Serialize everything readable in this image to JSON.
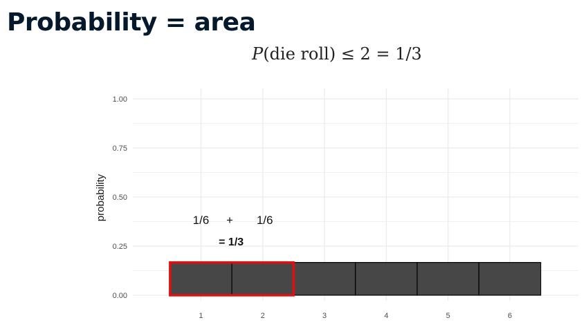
{
  "slide": {
    "title": "Probability = area",
    "formula": {
      "P": "P",
      "argument": "(die roll)",
      "rest": " ≤ 2 = 1/3"
    }
  },
  "colors": {
    "bar_fill": "#474747",
    "bar_edge": "#000000",
    "highlight": "#e01010",
    "grid": "#ebebeb"
  },
  "chart_data": {
    "type": "bar",
    "categories": [
      "1",
      "2",
      "3",
      "4",
      "5",
      "6"
    ],
    "values": [
      0.1667,
      0.1667,
      0.1667,
      0.1667,
      0.1667,
      0.1667
    ],
    "highlighted_categories": [
      "1",
      "2"
    ],
    "ylabel": "probability",
    "xlabel": "",
    "ylim": [
      0,
      1
    ],
    "yticks": [
      "0.00",
      "0.25",
      "0.50",
      "0.75",
      "1.00"
    ],
    "ytick_values": [
      0,
      0.25,
      0.5,
      0.75,
      1.0
    ],
    "grid": true,
    "annotations": {
      "left_term": "1/6",
      "plus": "+",
      "right_term": "1/6",
      "sum": "= 1/3"
    }
  }
}
